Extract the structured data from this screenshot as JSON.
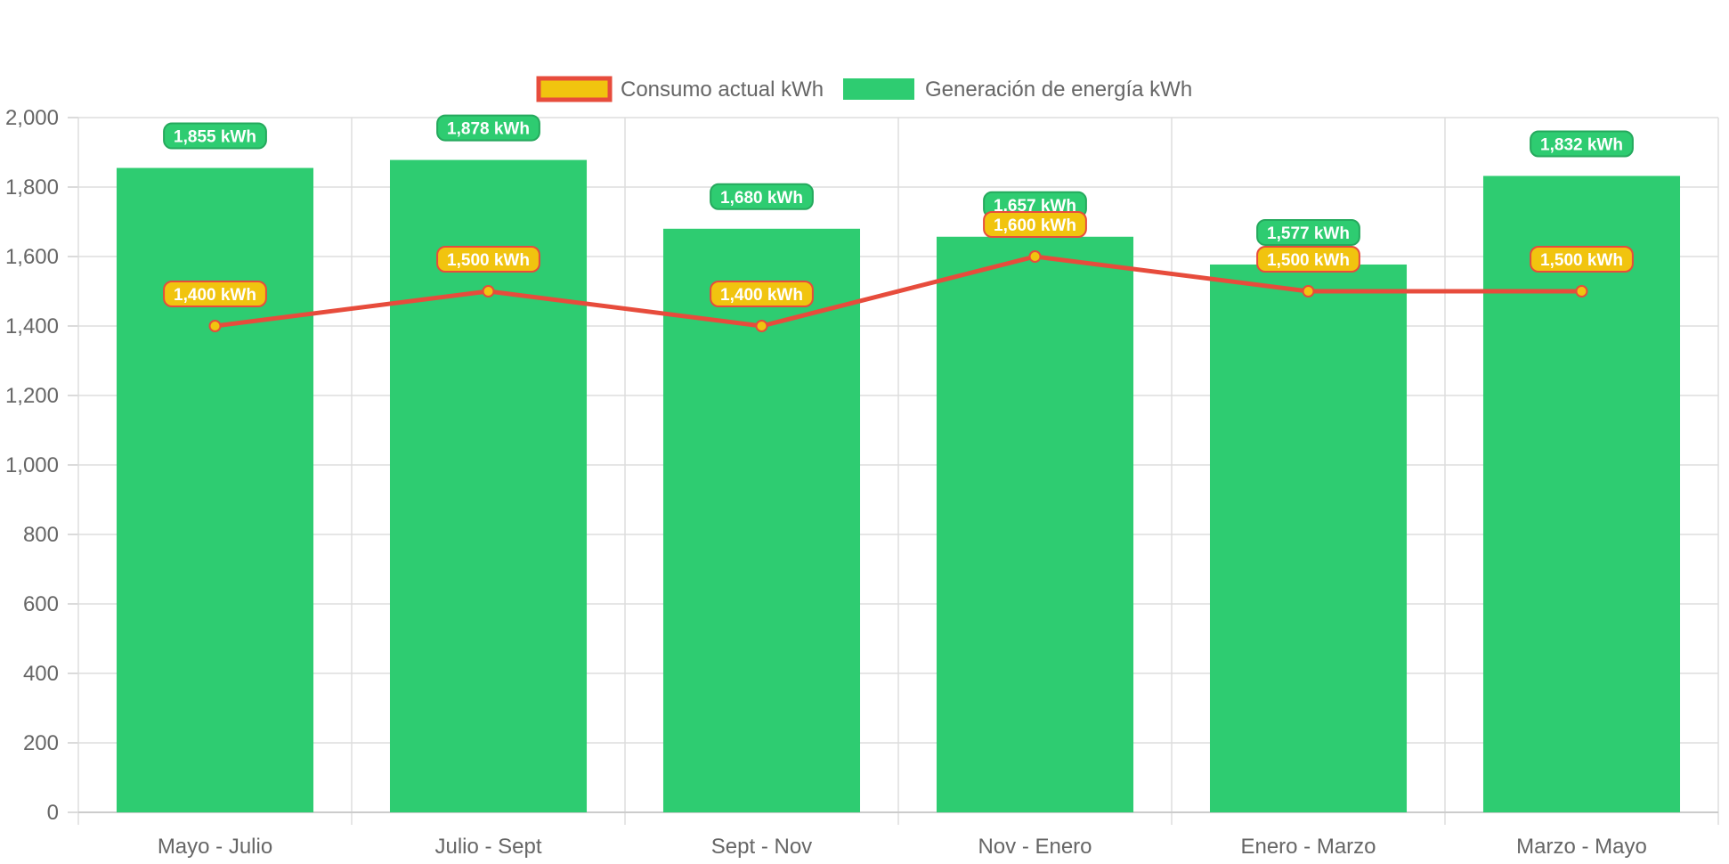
{
  "chart_data": {
    "type": "bar",
    "categories": [
      "Mayo - Julio",
      "Julio - Sept",
      "Sept - Nov",
      "Nov - Enero",
      "Enero - Marzo",
      "Marzo - Mayo"
    ],
    "series": [
      {
        "name": "Generación de energía kWh",
        "type": "bar",
        "values": [
          1855,
          1878,
          1680,
          1657,
          1577,
          1832
        ],
        "labels": [
          "1,855 kWh",
          "1,878 kWh",
          "1,680 kWh",
          "1,657 kWh",
          "1,577 kWh",
          "1,832 kWh"
        ],
        "color": "#2ecc71"
      },
      {
        "name": "Consumo actual kWh",
        "type": "line",
        "values": [
          1400,
          1500,
          1400,
          1600,
          1500,
          1500
        ],
        "labels": [
          "1,400 kWh",
          "1,500 kWh",
          "1,400 kWh",
          "1,600 kWh",
          "1,500 kWh",
          "1,500 kWh"
        ],
        "color": "#e74c3c",
        "fill_color": "#f1c40f"
      }
    ],
    "y_ticks": [
      "0",
      "200",
      "400",
      "600",
      "800",
      "1,000",
      "1,200",
      "1,400",
      "1,600",
      "1,800",
      "2,000"
    ],
    "ylim": [
      0,
      2000
    ],
    "grid": true,
    "legend": "top-center"
  }
}
